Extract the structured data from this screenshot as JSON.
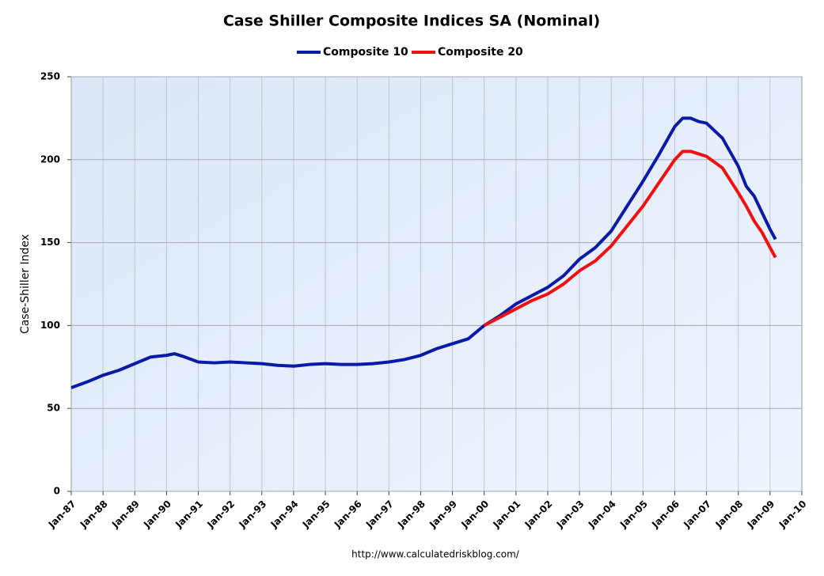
{
  "chart_data": {
    "type": "line",
    "title": "Case Shiller Composite Indices SA (Nominal)",
    "y_label": "Case-Shiller Index",
    "source": "http://www.calculatedriskblog.com/",
    "xlim": [
      1987,
      2010
    ],
    "xticks": [
      {
        "value": 1987,
        "label": "Jan-87"
      },
      {
        "value": 1988,
        "label": "Jan-88"
      },
      {
        "value": 1989,
        "label": "Jan-89"
      },
      {
        "value": 1990,
        "label": "Jan-90"
      },
      {
        "value": 1991,
        "label": "Jan-91"
      },
      {
        "value": 1992,
        "label": "Jan-92"
      },
      {
        "value": 1993,
        "label": "Jan-93"
      },
      {
        "value": 1994,
        "label": "Jan-94"
      },
      {
        "value": 1995,
        "label": "Jan-95"
      },
      {
        "value": 1996,
        "label": "Jan-96"
      },
      {
        "value": 1997,
        "label": "Jan-97"
      },
      {
        "value": 1998,
        "label": "Jan-98"
      },
      {
        "value": 1999,
        "label": "Jan-99"
      },
      {
        "value": 2000,
        "label": "Jan-00"
      },
      {
        "value": 2001,
        "label": "Jan-01"
      },
      {
        "value": 2002,
        "label": "Jan-02"
      },
      {
        "value": 2003,
        "label": "Jan-03"
      },
      {
        "value": 2004,
        "label": "Jan-04"
      },
      {
        "value": 2005,
        "label": "Jan-05"
      },
      {
        "value": 2006,
        "label": "Jan-06"
      },
      {
        "value": 2007,
        "label": "Jan-07"
      },
      {
        "value": 2008,
        "label": "Jan-08"
      },
      {
        "value": 2009,
        "label": "Jan-09"
      },
      {
        "value": 2010,
        "label": "Jan-10"
      }
    ],
    "ylim": [
      0,
      250
    ],
    "yticks": [
      0,
      50,
      100,
      150,
      200,
      250
    ],
    "grid": true,
    "legend": "top",
    "series": [
      {
        "name": "Composite 10",
        "color": "#0a1aa8",
        "x": [
          1987.0,
          1987.5,
          1988.0,
          1988.5,
          1989.0,
          1989.5,
          1990.0,
          1990.25,
          1990.5,
          1991.0,
          1991.5,
          1992.0,
          1992.5,
          1993.0,
          1993.5,
          1994.0,
          1994.5,
          1995.0,
          1995.5,
          1996.0,
          1996.5,
          1997.0,
          1997.5,
          1998.0,
          1998.5,
          1999.0,
          1999.5,
          2000.0,
          2000.5,
          2001.0,
          2001.5,
          2002.0,
          2002.5,
          2003.0,
          2003.5,
          2004.0,
          2004.5,
          2005.0,
          2005.5,
          2006.0,
          2006.25,
          2006.5,
          2006.75,
          2007.0,
          2007.5,
          2008.0,
          2008.25,
          2008.5,
          2008.75,
          2009.0,
          2009.17
        ],
        "values": [
          62.5,
          66,
          70,
          73,
          77,
          81,
          82,
          83,
          81.5,
          78,
          77.5,
          78,
          77.5,
          77,
          76,
          75.5,
          76.5,
          77,
          76.5,
          76.5,
          77,
          78,
          79.5,
          82,
          86,
          89,
          92,
          100,
          106,
          113,
          118,
          123,
          130,
          140,
          147,
          157,
          172,
          187,
          203,
          220,
          225,
          225,
          223,
          222,
          213,
          196,
          184,
          178,
          168,
          158,
          152
        ]
      },
      {
        "name": "Composite 20",
        "color": "#f01010",
        "x": [
          2000.0,
          2000.5,
          2001.0,
          2001.5,
          2002.0,
          2002.5,
          2003.0,
          2003.5,
          2004.0,
          2004.5,
          2005.0,
          2005.5,
          2006.0,
          2006.25,
          2006.5,
          2006.75,
          2007.0,
          2007.5,
          2008.0,
          2008.25,
          2008.5,
          2008.75,
          2009.0,
          2009.17
        ],
        "values": [
          100,
          105,
          110,
          115,
          119,
          125,
          133,
          139,
          148,
          160,
          172,
          186,
          200,
          205,
          205,
          203.5,
          202,
          195,
          180,
          172,
          163,
          156,
          147,
          141
        ]
      }
    ]
  }
}
